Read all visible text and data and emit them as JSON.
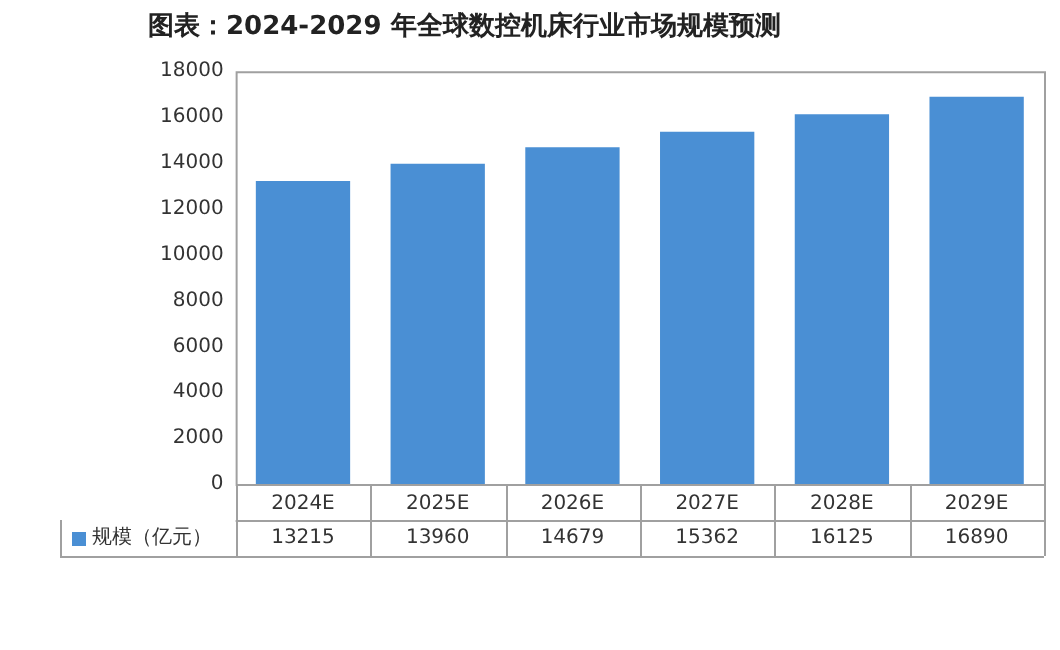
{
  "chart_data": {
    "type": "bar",
    "title": "图表：2024-2029 年全球数控机床行业市场规模预测",
    "categories": [
      "2024E",
      "2025E",
      "2026E",
      "2027E",
      "2028E",
      "2029E"
    ],
    "series": [
      {
        "name": "规模（亿元）",
        "color": "#4a8fd4",
        "values": [
          13215,
          13960,
          14679,
          15362,
          16125,
          16890
        ]
      }
    ],
    "ylim": [
      0,
      18000
    ],
    "yticks": [
      0,
      2000,
      4000,
      6000,
      8000,
      10000,
      12000,
      14000,
      16000,
      18000
    ],
    "grid": false,
    "legend": "bottom",
    "data_labels": true
  }
}
